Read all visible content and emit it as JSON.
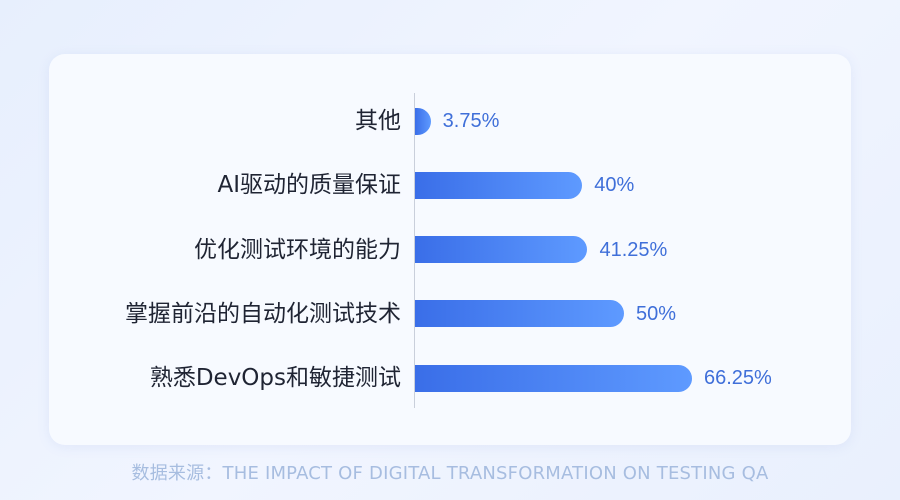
{
  "chart_data": {
    "type": "bar",
    "orientation": "horizontal",
    "categories": [
      "其他",
      "AI驱动的质量保证",
      "优化测试环境的能力",
      "掌握前沿的自动化测试技术",
      "熟悉DevOps和敏捷测试"
    ],
    "values": [
      3.75,
      40,
      41.25,
      50,
      66.25
    ],
    "value_labels": [
      "3.75%",
      "40%",
      "41.25%",
      "50%",
      "66.25%"
    ],
    "unit": "%",
    "xlim": [
      0,
      100
    ],
    "grid": false,
    "colors": {
      "bar_start": "#3a6ee8",
      "bar_end": "#5e9aff",
      "value_text": "#3f6fd9",
      "category_text": "#1f2433"
    }
  },
  "source": {
    "text": "数据来源：THE IMPACT OF DIGITAL TRANSFORMATION ON TESTING QA"
  }
}
